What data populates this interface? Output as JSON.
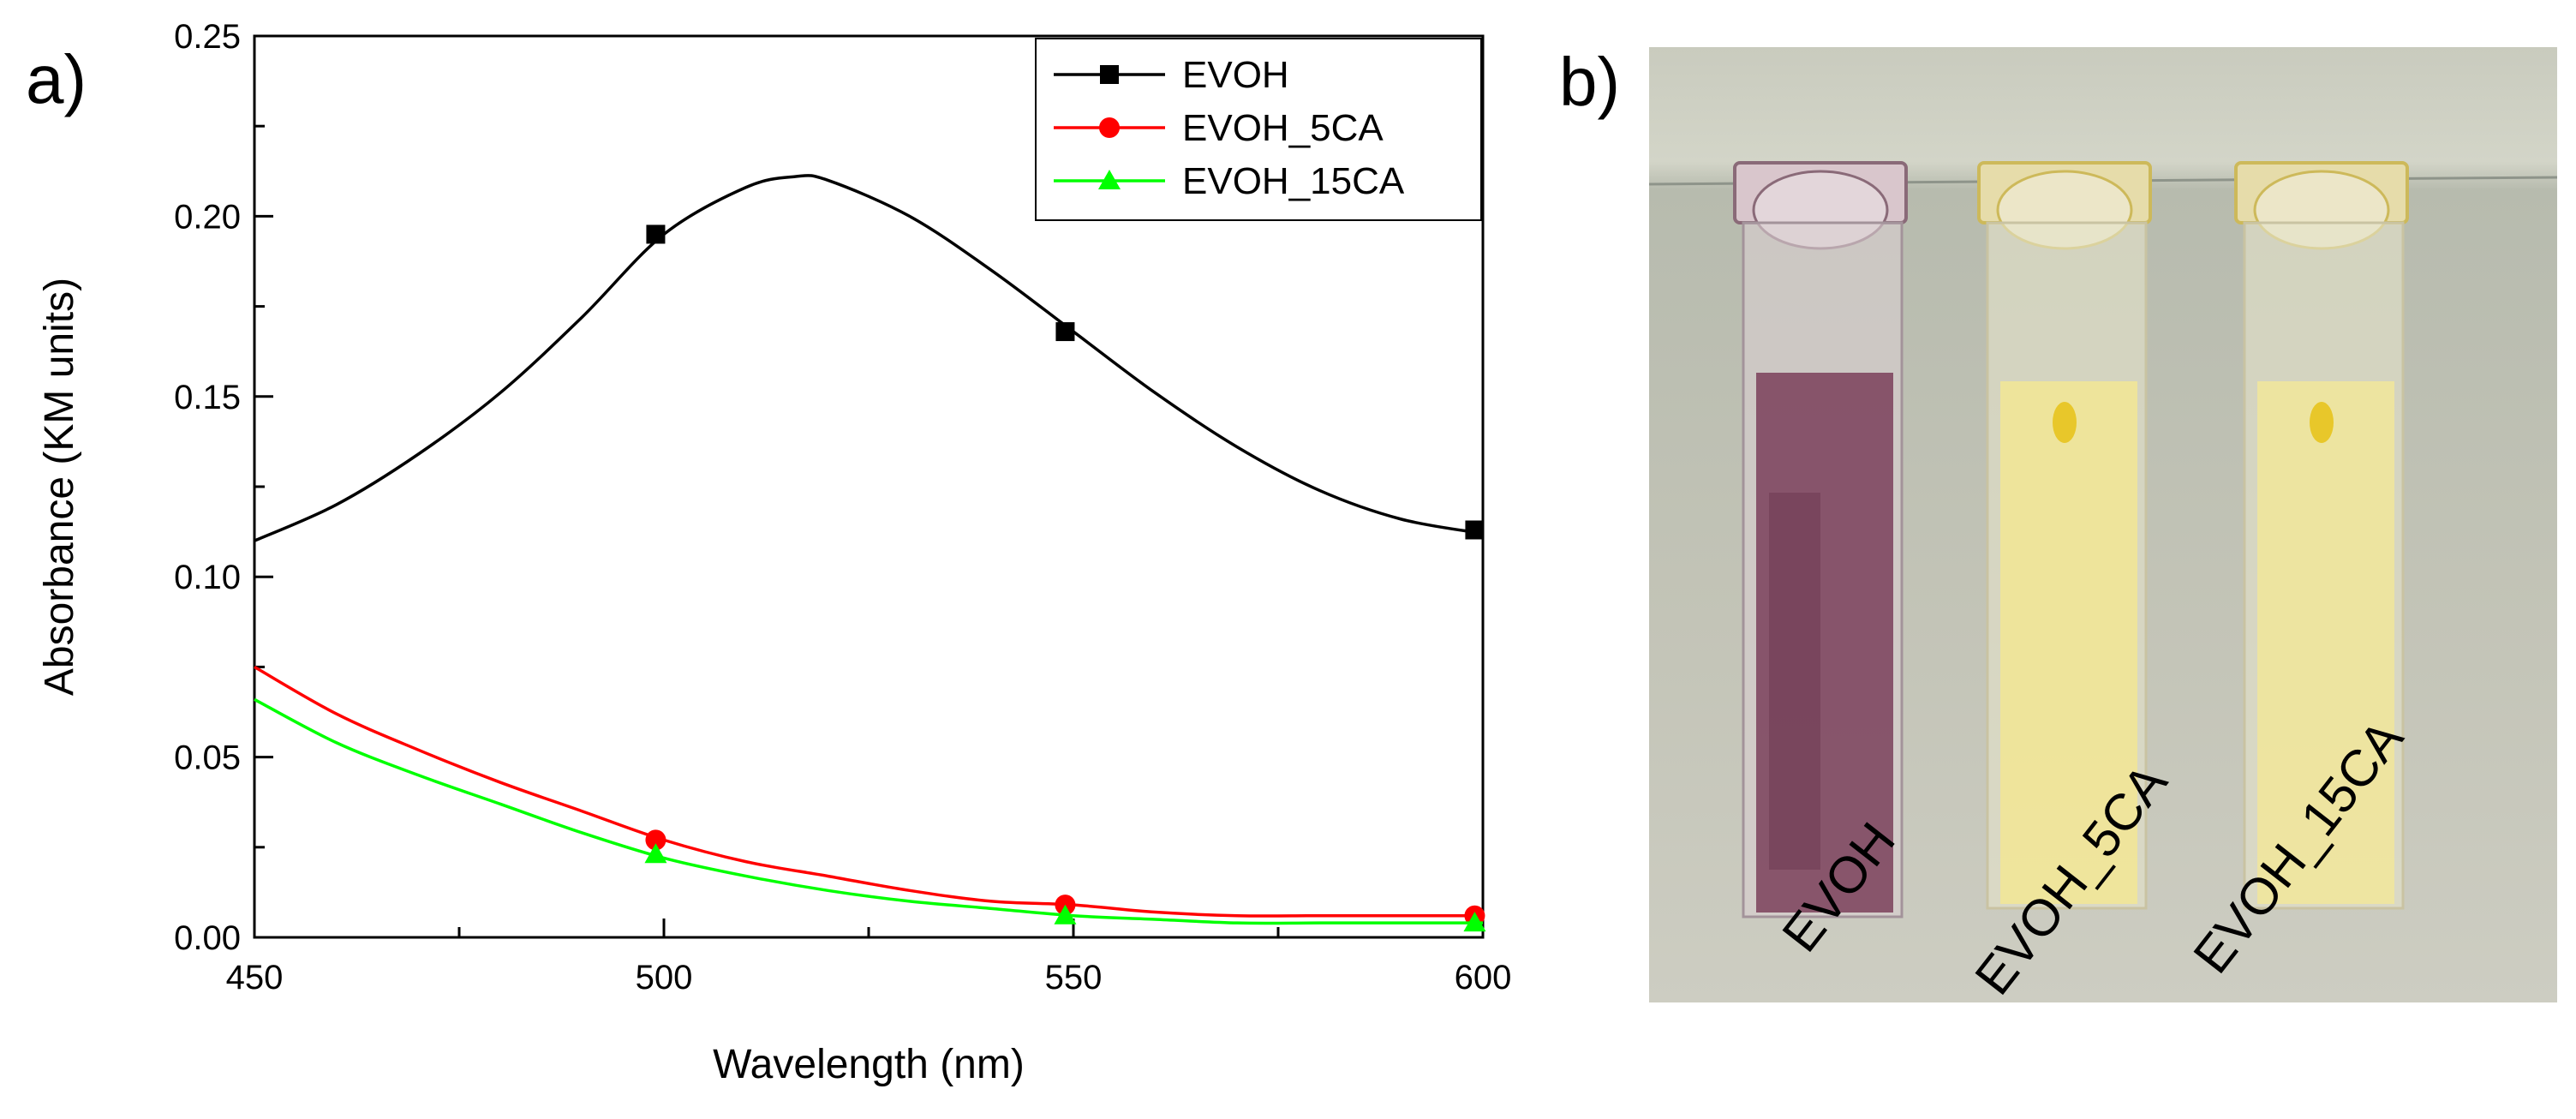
{
  "panel_a": {
    "label": "a)"
  },
  "panel_b": {
    "label": "b)",
    "photo_labels": [
      "EVOH",
      "EVOH_5CA",
      "EVOH_15CA"
    ],
    "liquid_colors": [
      "#7a3f5a",
      "#f2e694",
      "#f1e69a"
    ]
  },
  "chart_data": {
    "type": "line",
    "title": "",
    "xlabel": "Wavelength (nm)",
    "ylabel": "Absorbance (KM units)",
    "xlim": [
      450,
      600
    ],
    "ylim": [
      0.0,
      0.25
    ],
    "xticks": [
      450,
      500,
      550,
      600
    ],
    "xtick_labels": [
      "450",
      "500",
      "550",
      "600"
    ],
    "yticks": [
      0.0,
      0.05,
      0.1,
      0.15,
      0.2,
      0.25
    ],
    "ytick_labels": [
      "0.00",
      "0.05",
      "0.10",
      "0.15",
      "0.20",
      "0.25"
    ],
    "grid": false,
    "legend_position": "top-right",
    "series": [
      {
        "name": "EVOH",
        "color": "#000000",
        "marker": "square",
        "x": [
          450,
          460,
          470,
          480,
          490,
          500,
          510,
          516,
          520,
          530,
          540,
          550,
          560,
          570,
          580,
          590,
          600
        ],
        "y": [
          0.11,
          0.12,
          0.134,
          0.151,
          0.172,
          0.195,
          0.208,
          0.211,
          0.21,
          0.2,
          0.185,
          0.168,
          0.151,
          0.136,
          0.124,
          0.116,
          0.112
        ],
        "marker_x": [
          499,
          549,
          599
        ],
        "marker_y": [
          0.195,
          0.168,
          0.113
        ]
      },
      {
        "name": "EVOH_5CA",
        "color": "#ff0000",
        "marker": "circle",
        "x": [
          450,
          460,
          470,
          480,
          490,
          500,
          510,
          520,
          530,
          540,
          550,
          560,
          570,
          580,
          590,
          600
        ],
        "y": [
          0.075,
          0.062,
          0.052,
          0.043,
          0.035,
          0.027,
          0.021,
          0.017,
          0.013,
          0.01,
          0.009,
          0.007,
          0.006,
          0.006,
          0.006,
          0.006
        ],
        "marker_x": [
          499,
          549,
          599
        ],
        "marker_y": [
          0.027,
          0.009,
          0.006
        ]
      },
      {
        "name": "EVOH_15CA",
        "color": "#00ff00",
        "marker": "triangle",
        "x": [
          450,
          460,
          470,
          480,
          490,
          500,
          510,
          520,
          530,
          540,
          550,
          560,
          570,
          580,
          590,
          600
        ],
        "y": [
          0.066,
          0.054,
          0.045,
          0.037,
          0.029,
          0.022,
          0.017,
          0.013,
          0.01,
          0.008,
          0.006,
          0.005,
          0.004,
          0.004,
          0.004,
          0.004
        ],
        "marker_x": [
          499,
          549,
          599
        ],
        "marker_y": [
          0.023,
          0.006,
          0.004
        ]
      }
    ]
  }
}
